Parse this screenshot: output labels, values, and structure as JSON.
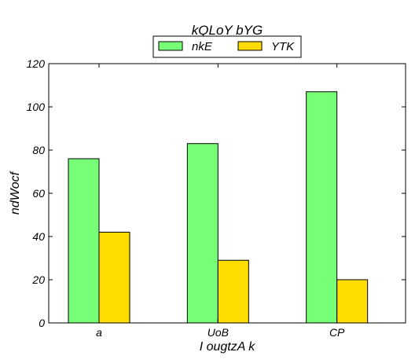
{
  "chart_data": {
    "type": "bar",
    "title": "kQLoY bYG",
    "xlabel": "I ougtzA k",
    "ylabel": "ndWocf",
    "categories": [
      "a",
      "UoB",
      "CP"
    ],
    "series": [
      {
        "name": "nkE",
        "values": [
          76,
          83,
          107
        ],
        "color": "#77ff77"
      },
      {
        "name": "YTK",
        "values": [
          42,
          29,
          20
        ],
        "color": "#ffdd00"
      }
    ],
    "ylim": [
      0,
      120
    ],
    "yticks": [
      0,
      20,
      40,
      60,
      80,
      100,
      120
    ],
    "grid": false,
    "legend": "top-center"
  }
}
